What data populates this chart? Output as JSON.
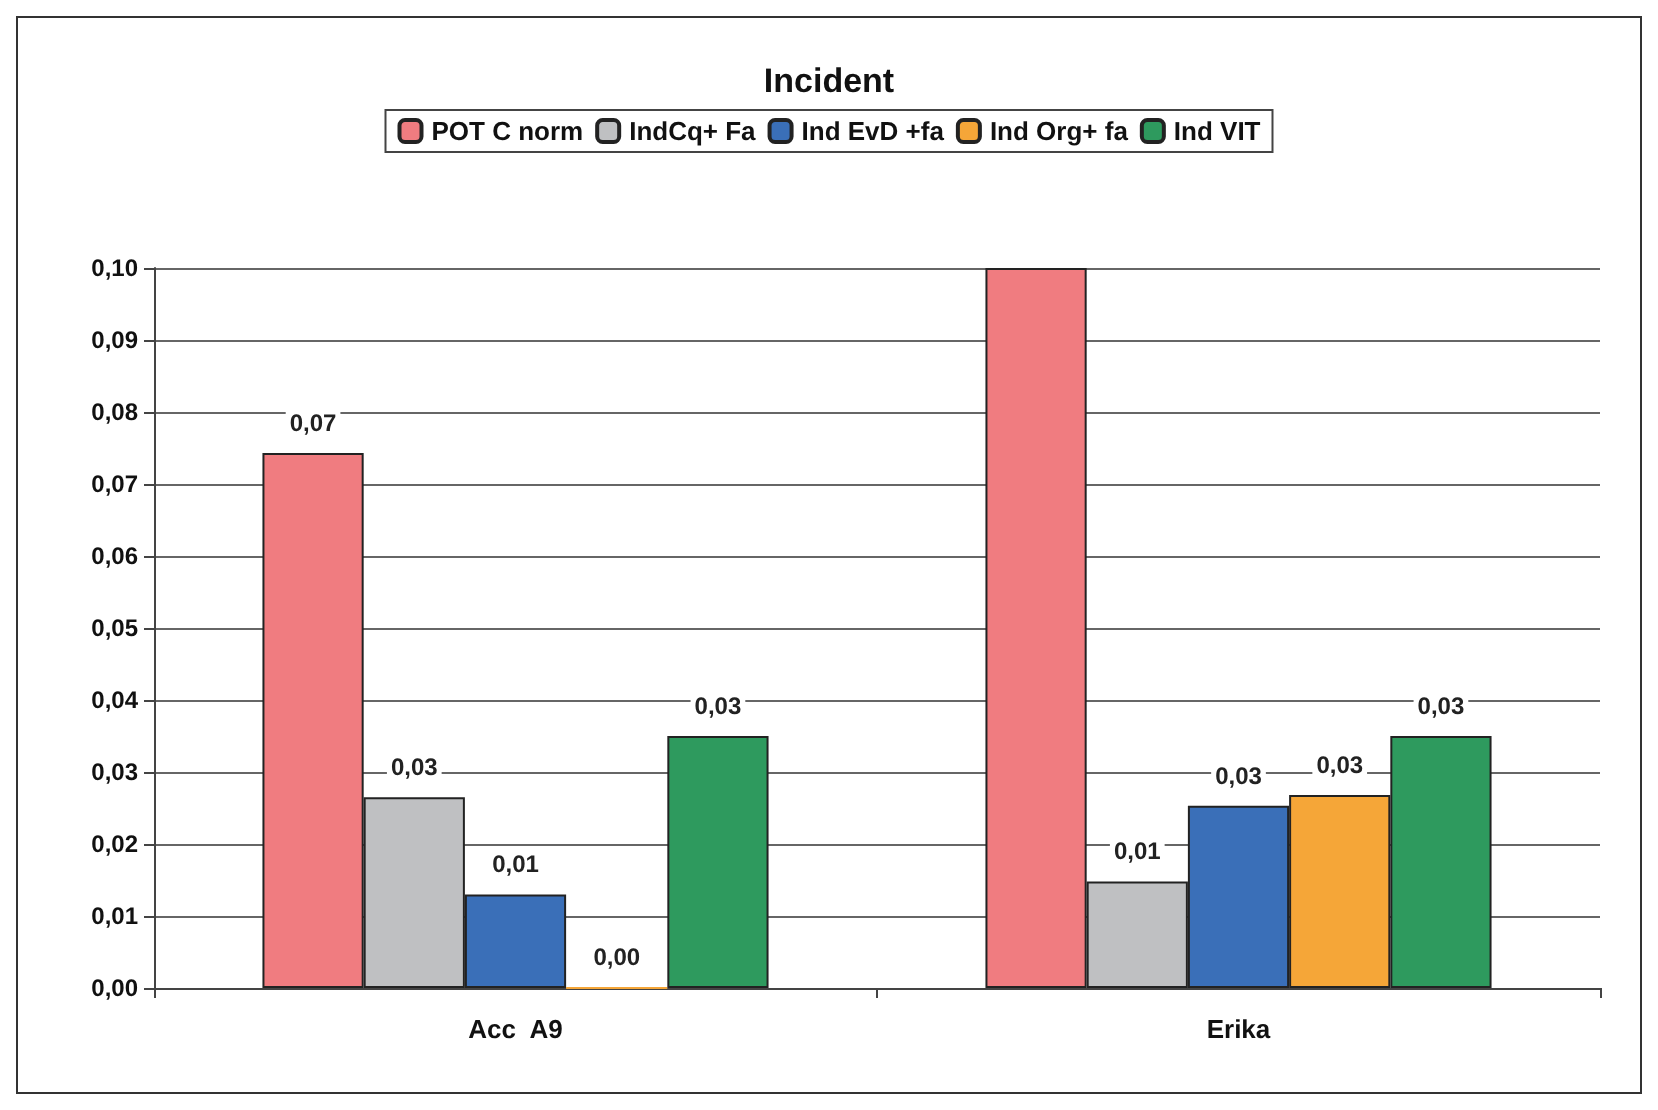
{
  "chart_data": {
    "type": "bar",
    "title": "Incident",
    "categories": [
      "Acc  A9",
      "Erika"
    ],
    "series": [
      {
        "name": "POT C norm",
        "color": "#f07c80",
        "values": [
          0.0743,
          0.1
        ],
        "value_labels": [
          "0,07",
          null
        ]
      },
      {
        "name": "IndCq+ Fa",
        "color": "#bfc0c2",
        "values": [
          0.0265,
          0.0148
        ],
        "value_labels": [
          "0,03",
          "0,01"
        ]
      },
      {
        "name": "Ind EvD +fa",
        "color": "#3a6fb8",
        "values": [
          0.013,
          0.0253
        ],
        "value_labels": [
          "0,01",
          "0,03"
        ]
      },
      {
        "name": "Ind Org+ fa",
        "color": "#f5a638",
        "values": [
          0,
          0.0268
        ],
        "value_labels": [
          "0,00",
          "0,03"
        ]
      },
      {
        "name": "Ind VIT",
        "color": "#2e9a5e",
        "values": [
          0.035,
          0.035
        ],
        "value_labels": [
          "0,03",
          "0,03"
        ]
      }
    ],
    "ylim": [
      0,
      0.1
    ],
    "yticks": [
      {
        "value": 0,
        "label": "0,00"
      },
      {
        "value": 0.01,
        "label": "0,01"
      },
      {
        "value": 0.02,
        "label": "0,02"
      },
      {
        "value": 0.03,
        "label": "0,03"
      },
      {
        "value": 0.04,
        "label": "0,04"
      },
      {
        "value": 0.05,
        "label": "0,05"
      },
      {
        "value": 0.06,
        "label": "0,06"
      },
      {
        "value": 0.07,
        "label": "0,07"
      },
      {
        "value": 0.08,
        "label": "0,08"
      },
      {
        "value": 0.09,
        "label": "0,09"
      },
      {
        "value": 0.1,
        "label": "0,10"
      }
    ],
    "grid": "y",
    "legend": "top"
  }
}
